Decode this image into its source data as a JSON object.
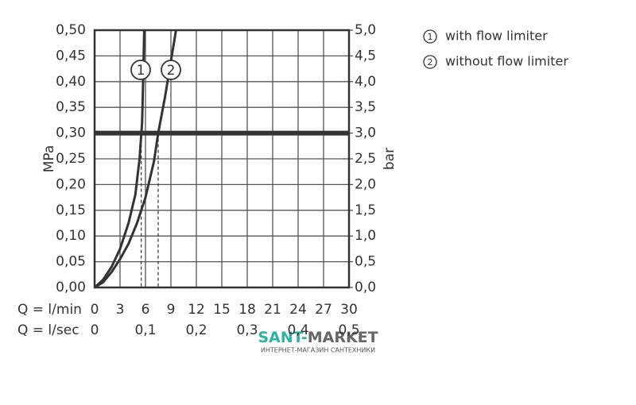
{
  "chart_data": {
    "type": "line",
    "xlabel": "Q = l/min",
    "x2label": "Q = l/sec",
    "ylabel": "MPa",
    "y2label": "bar",
    "xlim": [
      0,
      30
    ],
    "xticks": [
      0,
      3,
      6,
      9,
      12,
      15,
      18,
      21,
      24,
      27,
      30
    ],
    "x2lim": [
      0,
      0.5
    ],
    "x2ticks": [
      0,
      {
        "value": 0.1,
        "label": "0,1"
      },
      {
        "value": 0.2,
        "label": "0,2"
      },
      {
        "value": 0.3,
        "label": "0,3"
      },
      {
        "value": 0.4,
        "label": "0,4"
      },
      {
        "value": 0.5,
        "label": "0,5"
      }
    ],
    "ylim": [
      0,
      0.5
    ],
    "yticks": [
      {
        "value": 0,
        "label": "0,00"
      },
      {
        "value": 0.05,
        "label": "0,05"
      },
      {
        "value": 0.1,
        "label": "0,10"
      },
      {
        "value": 0.15,
        "label": "0,15"
      },
      {
        "value": 0.2,
        "label": "0,20"
      },
      {
        "value": 0.25,
        "label": "0,25"
      },
      {
        "value": 0.3,
        "label": "0,30"
      },
      {
        "value": 0.35,
        "label": "0,35"
      },
      {
        "value": 0.4,
        "label": "0,40"
      },
      {
        "value": 0.45,
        "label": "0,45"
      },
      {
        "value": 0.5,
        "label": "0,50"
      }
    ],
    "y2lim": [
      0,
      5
    ],
    "y2ticks": [
      {
        "value": 0,
        "label": "0,0"
      },
      {
        "value": 0.5,
        "label": "0,5"
      },
      {
        "value": 1,
        "label": "1,0"
      },
      {
        "value": 1.5,
        "label": "1,5"
      },
      {
        "value": 2,
        "label": "2,0"
      },
      {
        "value": 2.5,
        "label": "2,5"
      },
      {
        "value": 3,
        "label": "3,0"
      },
      {
        "value": 3.5,
        "label": "3,5"
      },
      {
        "value": 4,
        "label": "4,0"
      },
      {
        "value": 4.5,
        "label": "4,5"
      },
      {
        "value": 5,
        "label": "5,0"
      }
    ],
    "grid": true,
    "reference_line": 0.3,
    "series": [
      {
        "name": "with flow limiter",
        "label": "1",
        "color": "#333333",
        "x": [
          0,
          1,
          2,
          3,
          4,
          4.8,
          5.3,
          5.6,
          5.75,
          5.85
        ],
        "values": [
          0,
          0.015,
          0.04,
          0.075,
          0.125,
          0.18,
          0.25,
          0.32,
          0.42,
          0.5
        ],
        "operating_x": 5.5
      },
      {
        "name": "without flow limiter",
        "label": "2",
        "color": "#333333",
        "x": [
          0,
          1,
          2,
          3,
          4,
          5,
          6,
          7,
          7.5,
          8.3,
          9,
          9.6
        ],
        "values": [
          0,
          0.01,
          0.03,
          0.055,
          0.085,
          0.125,
          0.175,
          0.245,
          0.3,
          0.37,
          0.44,
          0.5
        ],
        "operating_x": 7.5
      }
    ],
    "watermark": {
      "parts": [
        "SANT-",
        "MARKET"
      ],
      "subtitle": "ИНТЕРНЕТ-МАГАЗИН САНТЕХНИКИ"
    }
  }
}
